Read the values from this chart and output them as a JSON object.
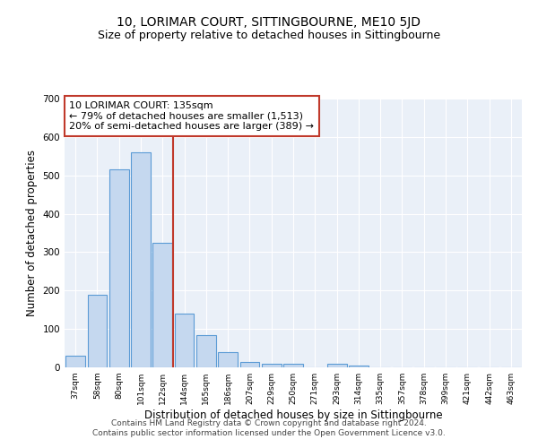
{
  "title": "10, LORIMAR COURT, SITTINGBOURNE, ME10 5JD",
  "subtitle": "Size of property relative to detached houses in Sittingbourne",
  "xlabel": "Distribution of detached houses by size in Sittingbourne",
  "ylabel": "Number of detached properties",
  "categories": [
    "37sqm",
    "58sqm",
    "80sqm",
    "101sqm",
    "122sqm",
    "144sqm",
    "165sqm",
    "186sqm",
    "207sqm",
    "229sqm",
    "250sqm",
    "271sqm",
    "293sqm",
    "314sqm",
    "335sqm",
    "357sqm",
    "378sqm",
    "399sqm",
    "421sqm",
    "442sqm",
    "463sqm"
  ],
  "values": [
    30,
    190,
    515,
    560,
    325,
    140,
    85,
    40,
    13,
    10,
    10,
    0,
    10,
    5,
    0,
    0,
    0,
    0,
    0,
    0,
    0
  ],
  "bar_color": "#c5d8ef",
  "bar_edge_color": "#5b9bd5",
  "vline_color": "#c0392b",
  "annotation_text": "10 LORIMAR COURT: 135sqm\n← 79% of detached houses are smaller (1,513)\n20% of semi-detached houses are larger (389) →",
  "annotation_box_color": "white",
  "annotation_box_edge_color": "#c0392b",
  "ylim": [
    0,
    700
  ],
  "yticks": [
    0,
    100,
    200,
    300,
    400,
    500,
    600,
    700
  ],
  "bg_color": "#eaf0f8",
  "footer": "Contains HM Land Registry data © Crown copyright and database right 2024.\nContains public sector information licensed under the Open Government Licence v3.0.",
  "title_fontsize": 10,
  "subtitle_fontsize": 9,
  "xlabel_fontsize": 8.5,
  "ylabel_fontsize": 8.5,
  "annotation_fontsize": 8,
  "footer_fontsize": 6.5
}
